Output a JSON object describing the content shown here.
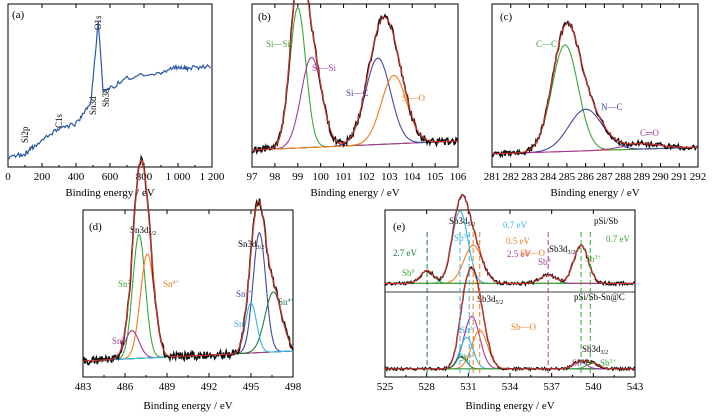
{
  "colors": {
    "raw": "#111111",
    "fit": "#e8322c",
    "background": "#ef7f1a",
    "green": "#3aa935",
    "blue": "#3d4aa0",
    "purple": "#a43a9c",
    "orange": "#ef7f1a",
    "cyan": "#33b5e5",
    "darkgreen": "#1f7a3a",
    "survey": "#2b57a6"
  },
  "chart_data": [
    {
      "id": "a",
      "type": "line",
      "panel_label": "(a)",
      "xlabel": "Binding energy / eV",
      "xlim": [
        0,
        1200
      ],
      "x_ticks": [
        "0",
        "200",
        "400",
        "600",
        "800",
        "1 000",
        "1 200"
      ],
      "annotations": [
        "Si2p",
        "C1s",
        "Sn3d",
        "Sb3d",
        "O1s"
      ],
      "series": [
        {
          "values": [
            [
              0,
              0.03
            ],
            [
              100,
              0.05
            ],
            [
              150,
              0.1
            ],
            [
              285,
              0.22
            ],
            [
              400,
              0.26
            ],
            [
              487,
              0.4
            ],
            [
              531,
              0.98
            ],
            [
              560,
              0.48
            ],
            [
              700,
              0.58
            ],
            [
              900,
              0.62
            ],
            [
              1000,
              0.66
            ],
            [
              1060,
              0.65
            ],
            [
              1200,
              0.66
            ]
          ]
        }
      ]
    },
    {
      "id": "b",
      "type": "line",
      "panel_label": "(b)",
      "xlabel": "Binding energy / eV",
      "xlim": [
        97,
        106
      ],
      "x_ticks": [
        "97",
        "98",
        "99",
        "100",
        "101",
        "102",
        "103",
        "104",
        "105",
        "106"
      ],
      "annotations": [
        "Si—Si",
        "Si—Si",
        "Si—C",
        "Si—O"
      ],
      "peaks": [
        {
          "center": 99.0,
          "height": 0.78,
          "width": 0.35,
          "color": "green"
        },
        {
          "center": 99.6,
          "height": 0.5,
          "width": 0.45,
          "color": "purple"
        },
        {
          "center": 102.5,
          "height": 0.48,
          "width": 0.55,
          "color": "blue"
        },
        {
          "center": 103.2,
          "height": 0.38,
          "width": 0.55,
          "color": "orange"
        }
      ]
    },
    {
      "id": "c",
      "type": "line",
      "panel_label": "(c)",
      "xlabel": "Binding energy / eV",
      "xlim": [
        281,
        292
      ],
      "x_ticks": [
        "281",
        "282",
        "283",
        "284",
        "285",
        "286",
        "287",
        "288",
        "289",
        "290",
        "291",
        "292"
      ],
      "annotations": [
        "C—C",
        "N—C",
        "C═O"
      ],
      "peaks": [
        {
          "center": 284.9,
          "height": 0.82,
          "width": 0.7,
          "color": "green"
        },
        {
          "center": 286.0,
          "height": 0.32,
          "width": 0.9,
          "color": "blue"
        },
        {
          "center": 289.0,
          "height": 0.04,
          "width": 1.0,
          "color": "purple"
        }
      ]
    },
    {
      "id": "d",
      "type": "line",
      "panel_label": "(d)",
      "xlabel": "Binding energy / eV",
      "xlim": [
        483,
        498
      ],
      "x_ticks": [
        "483",
        "486",
        "489",
        "492",
        "495",
        "498"
      ],
      "annotations": [
        "Sn3d",
        "5/2",
        "Sn",
        "2+",
        "Sn",
        "4+",
        "Sn",
        "0",
        "Sn3d",
        "3/2",
        "Sn",
        "2+",
        "Sn",
        "4+",
        "Sn",
        "0"
      ],
      "peaks": [
        {
          "center": 487.0,
          "height": 0.62,
          "width": 0.45,
          "color": "green"
        },
        {
          "center": 487.6,
          "height": 0.52,
          "width": 0.5,
          "color": "orange"
        },
        {
          "center": 486.5,
          "height": 0.14,
          "width": 0.5,
          "color": "purple"
        },
        {
          "center": 495.6,
          "height": 0.6,
          "width": 0.45,
          "color": "blue"
        },
        {
          "center": 496.6,
          "height": 0.3,
          "width": 0.6,
          "color": "darkgreen"
        },
        {
          "center": 495.0,
          "height": 0.25,
          "width": 0.4,
          "color": "cyan"
        }
      ]
    },
    {
      "id": "e",
      "type": "line",
      "panel_label": "(e)",
      "xlabel": "Binding energy / eV",
      "xlim": [
        525,
        544
      ],
      "x_ticks": [
        "525",
        "528",
        "531",
        "534",
        "537",
        "540",
        "543"
      ],
      "annotations": [
        "pSi/Sb",
        "pSi/Sb-Sn@C",
        "Sb3d",
        "5/2",
        "Sb3d",
        "3/2",
        "Sb3d",
        "5/2",
        "Sb3d",
        "3/2",
        "0.7 eV",
        "0.7 eV",
        "0.5 eV",
        "2.5 eV",
        "2.7 eV",
        "Sb",
        "3+",
        "Sb",
        "0",
        "Sb",
        "0",
        "Sb",
        "3+",
        "Sb",
        "3+",
        "Sb",
        "0",
        "Sb",
        "0",
        "Sb",
        "3+",
        "Sb—O",
        "Sb—O"
      ],
      "series": [
        {
          "peaks": [
            {
              "center": 530.7,
              "height": 0.85,
              "width": 0.6,
              "color": "cyan"
            },
            {
              "center": 531.7,
              "height": 0.45,
              "width": 0.7,
              "color": "orange"
            },
            {
              "center": 528.2,
              "height": 0.15,
              "width": 0.5,
              "color": "green"
            },
            {
              "center": 537.4,
              "height": 0.1,
              "width": 0.6,
              "color": "purple"
            },
            {
              "center": 539.9,
              "height": 0.45,
              "width": 0.55,
              "color": "green"
            }
          ]
        },
        {
          "peaks": [
            {
              "center": 531.6,
              "height": 0.75,
              "width": 0.6,
              "color": "purple"
            },
            {
              "center": 532.2,
              "height": 0.55,
              "width": 0.6,
              "color": "orange"
            },
            {
              "center": 531.2,
              "height": 0.45,
              "width": 0.5,
              "color": "cyan"
            },
            {
              "center": 530.8,
              "height": 0.18,
              "width": 0.4,
              "color": "darkgreen"
            },
            {
              "center": 539.8,
              "height": 0.1,
              "width": 0.5,
              "color": "purple"
            },
            {
              "center": 540.8,
              "height": 0.08,
              "width": 0.5,
              "color": "green"
            }
          ]
        }
      ]
    }
  ]
}
